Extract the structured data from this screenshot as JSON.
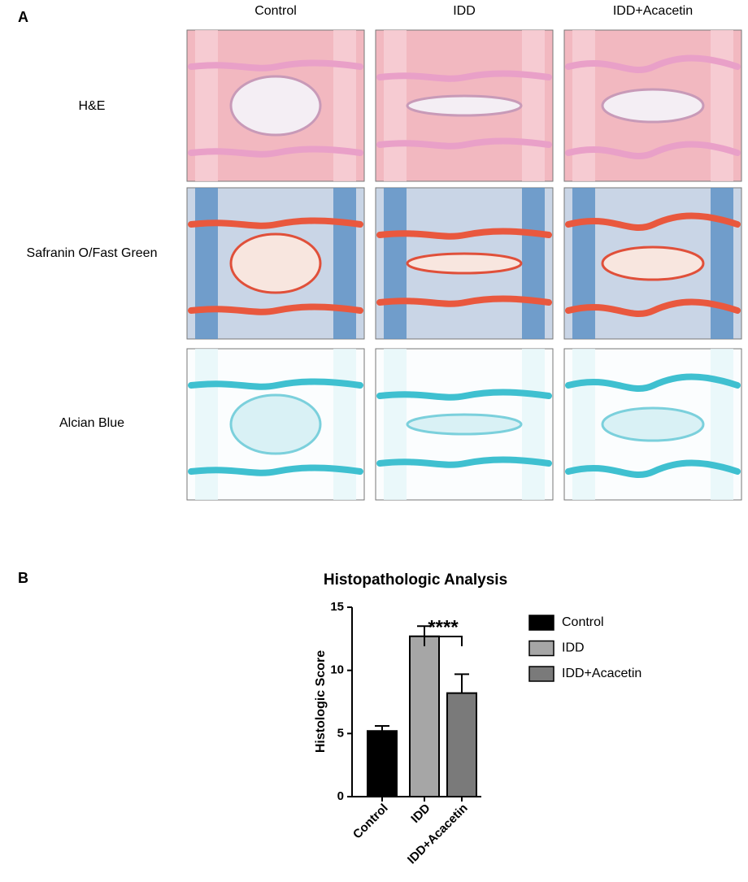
{
  "panel_a": {
    "label": "A",
    "columns": [
      "Control",
      "IDD",
      "IDD+Acacetin"
    ],
    "rows": [
      "H&E",
      "Safranin O/Fast Green",
      "Alcian Blue"
    ]
  },
  "panel_b": {
    "label": "B"
  },
  "chart_data": {
    "type": "bar",
    "title": "Histopathologic Analysis",
    "y_label": "Histologic Score",
    "categories": [
      "Control",
      "IDD",
      "IDD+Acacetin"
    ],
    "values": [
      5.2,
      12.7,
      8.2
    ],
    "errors": [
      0.4,
      0.8,
      1.5
    ],
    "colors": [
      "#000000",
      "#a6a6a6",
      "#7a7a7a"
    ],
    "ylim": [
      0,
      15
    ],
    "yticks": [
      0,
      5,
      10,
      15
    ],
    "grid": false,
    "annotation": "****",
    "legend": "right"
  }
}
